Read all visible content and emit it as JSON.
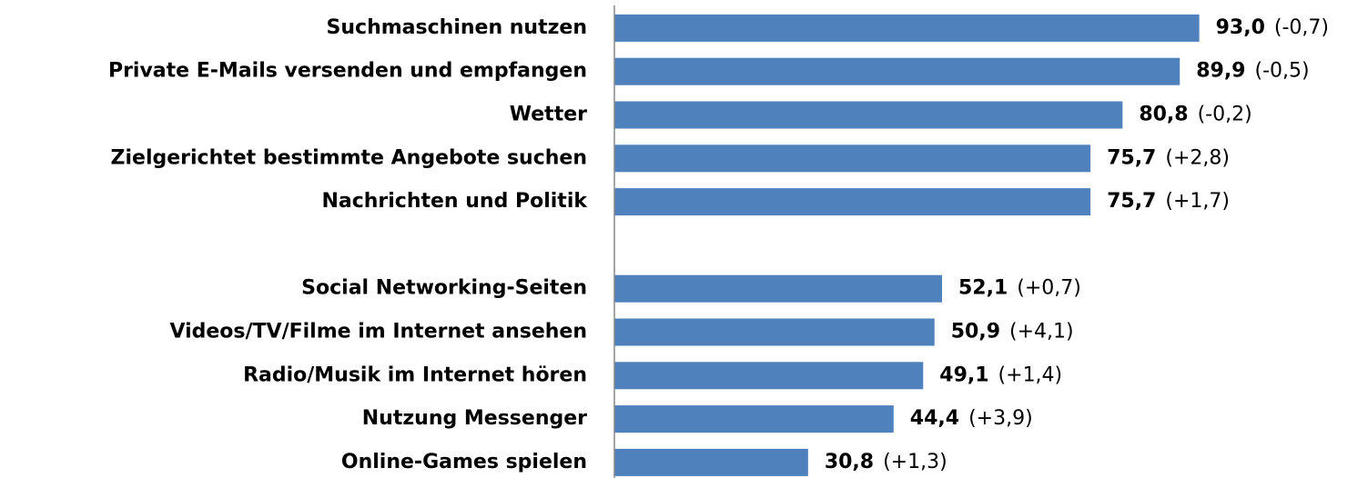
{
  "chart_data": {
    "type": "bar",
    "orientation": "horizontal",
    "categories": [
      "Suchmaschinen nutzen",
      "Private E-Mails versenden und empfangen",
      "Wetter",
      "Zielgerichtet bestimmte Angebote suchen",
      "Nachrichten und Politik",
      null,
      "Social Networking-Seiten",
      "Videos/TV/Filme im Internet ansehen",
      "Radio/Musik im Internet hören",
      "Nutzung Messenger",
      "Online-Games spielen"
    ],
    "values": [
      93.0,
      89.9,
      80.8,
      75.7,
      75.7,
      null,
      52.1,
      50.9,
      49.1,
      44.4,
      30.8
    ],
    "value_labels": [
      "93,0",
      "89,9",
      "80,8",
      "75,7",
      "75,7",
      null,
      "52,1",
      "50,9",
      "49,1",
      "44,4",
      "30,8"
    ],
    "change_labels": [
      "(-0,7)",
      "(-0,5)",
      "(-0,2)",
      "(+2,8)",
      "(+1,7)",
      null,
      "(+0,7)",
      "(+4,1)",
      "(+1,4)",
      "(+3,9)",
      "(+1,3)"
    ],
    "color": "#4f81bd",
    "xlim": [
      0,
      100
    ]
  }
}
